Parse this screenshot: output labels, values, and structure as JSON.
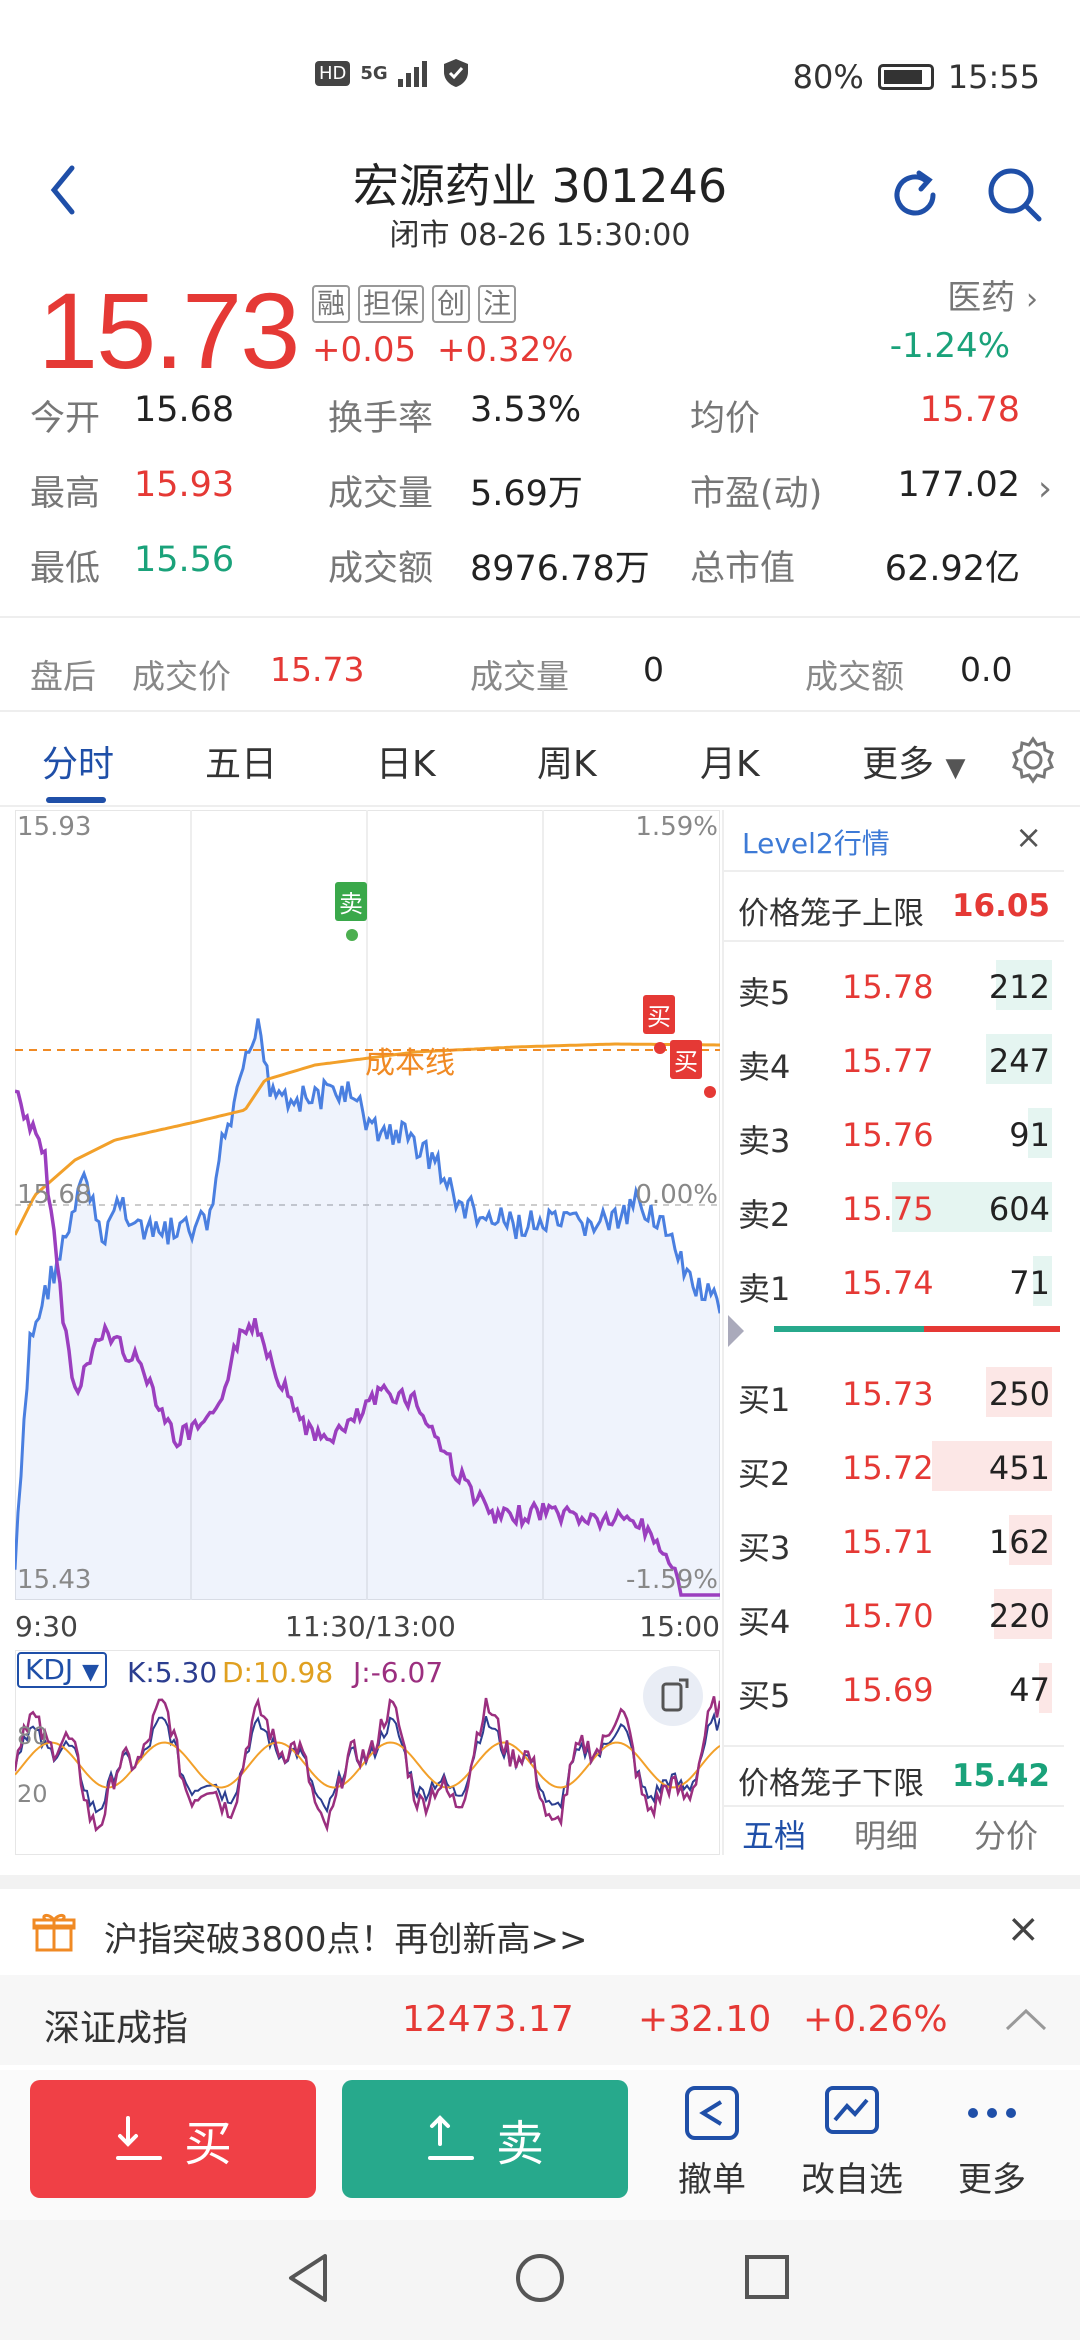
{
  "status": {
    "hd": "HD",
    "net": "5G",
    "battery": "80%",
    "time": "15:55"
  },
  "header": {
    "title": "宏源药业 301246",
    "subtitle": "闭市 08-26 15:30:00"
  },
  "quote": {
    "price": "15.73",
    "tags": [
      "融",
      "担保",
      "创",
      "注"
    ],
    "change": "+0.05",
    "change_pct": "+0.32%",
    "sector": "医药",
    "sector_change": "-1.24%"
  },
  "stats": [
    [
      {
        "label": "今开",
        "value": "15.68",
        "color": "dark"
      },
      {
        "label": "换手率",
        "value": "3.53%",
        "color": "dark"
      },
      {
        "label": "均价",
        "value": "15.78",
        "color": "red"
      }
    ],
    [
      {
        "label": "最高",
        "value": "15.93",
        "color": "red"
      },
      {
        "label": "成交量",
        "value": "5.69万",
        "color": "dark"
      },
      {
        "label": "市盈(动)",
        "value": "177.02",
        "color": "dark"
      }
    ],
    [
      {
        "label": "最低",
        "value": "15.56",
        "color": "green"
      },
      {
        "label": "成交额",
        "value": "8976.78万",
        "color": "dark"
      },
      {
        "label": "总市值",
        "value": "62.92亿",
        "color": "dark"
      }
    ]
  ],
  "afterhours": {
    "label": "盘后",
    "price_label": "成交价",
    "price": "15.73",
    "vol_label": "成交量",
    "vol": "0",
    "amt_label": "成交额",
    "amt": "0.0"
  },
  "tabs": [
    "分时",
    "五日",
    "日K",
    "周K",
    "月K",
    "更多"
  ],
  "chart": {
    "y_high": "15.93",
    "y_high_pct": "1.59%",
    "y_mid": "15.68",
    "y_mid_pct": "0.00%",
    "y_low": "15.43",
    "y_low_pct": "-1.59%",
    "x_start": "9:30",
    "x_mid": "11:30/13:00",
    "x_end": "15:00",
    "cost_line_label": "成本线",
    "sell_marker": "卖",
    "buy_marker": "买",
    "kdj_label": "KDJ",
    "kdj_k": "K:5.30",
    "kdj_d": "D:10.98",
    "kdj_j": "J:-6.07",
    "kdj_tick_high": "80",
    "kdj_tick_low": "20"
  },
  "book": {
    "title": "Level2行情",
    "upper_label": "价格笼子上限",
    "upper": "16.05",
    "asks": [
      {
        "label": "卖5",
        "price": "15.78",
        "vol": "212",
        "ratio": 0.35
      },
      {
        "label": "卖4",
        "price": "15.77",
        "vol": "247",
        "ratio": 0.41
      },
      {
        "label": "卖3",
        "price": "15.76",
        "vol": "91",
        "ratio": 0.15
      },
      {
        "label": "卖2",
        "price": "15.75",
        "vol": "604",
        "ratio": 1.0
      },
      {
        "label": "卖1",
        "price": "15.74",
        "vol": "71",
        "ratio": 0.12
      }
    ],
    "bids": [
      {
        "label": "买1",
        "price": "15.73",
        "vol": "250",
        "ratio": 0.41
      },
      {
        "label": "买2",
        "price": "15.72",
        "vol": "451",
        "ratio": 0.75
      },
      {
        "label": "买3",
        "price": "15.71",
        "vol": "162",
        "ratio": 0.27
      },
      {
        "label": "买4",
        "price": "15.70",
        "vol": "220",
        "ratio": 0.36
      },
      {
        "label": "买5",
        "price": "15.69",
        "vol": "47",
        "ratio": 0.08
      }
    ],
    "lower_label": "价格笼子下限",
    "lower": "15.42",
    "tabs": [
      "五档",
      "明细",
      "分价"
    ]
  },
  "promo": {
    "text": "沪指突破3800点！再创新高>>"
  },
  "index": {
    "name": "深证成指",
    "value": "12473.17",
    "change": "+32.10",
    "pct": "+0.26%"
  },
  "actions": {
    "buy": "买",
    "sell": "卖",
    "cancel": "撤单",
    "watch": "改自选",
    "more": "更多"
  }
}
